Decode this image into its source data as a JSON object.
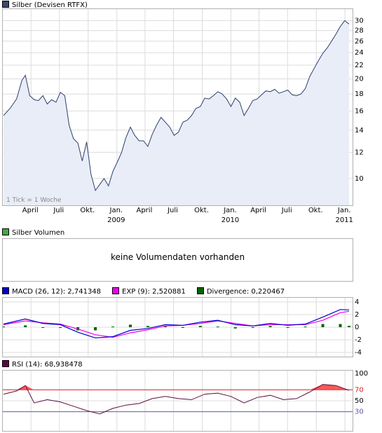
{
  "colors": {
    "price_line": "#2c3f6e",
    "price_fill": "#e9edf7",
    "grid": "#dcdcdc",
    "macd_line": "#0000cc",
    "exp_line": "#ee00ee",
    "divergence": "#006600",
    "rsi_line": "#5a0f3a",
    "rsi_band_high": "#e02020",
    "rsi_band_low": "#5a5aaa",
    "rsi_fill": "#ff5555",
    "volume_swatch": "#44aa44",
    "macd_swatch": "#0000cc",
    "exp_swatch": "#ee00ee",
    "div_swatch": "#006600",
    "rsi_swatch": "#66004a",
    "price_swatch": "#3a4a6e"
  },
  "price_panel": {
    "legend": "Silber (Devisen RTFX)",
    "footnote": "1 Tick = 1 Woche",
    "month_labels": [
      "April",
      "Juli",
      "Okt.",
      "Jan.",
      "April",
      "Juli",
      "Okt.",
      "Jan.",
      "April",
      "Juli",
      "Okt.",
      "Jan."
    ],
    "year_labels": [
      "2009",
      "2010",
      "2011"
    ]
  },
  "volume_panel": {
    "legend": "Silber Volumen",
    "message": "keine Volumendaten vorhanden"
  },
  "macd_panel": {
    "macd_legend": "MACD (26, 12): 2,741348",
    "exp_legend": "EXP (9): 2,520881",
    "div_legend": "Divergence: 0,220467"
  },
  "rsi_panel": {
    "legend": "RSI (14): 68,938478"
  },
  "chart_data": [
    {
      "type": "area",
      "title": "Silber (Devisen RTFX)",
      "y_scale": "log",
      "yticks": [
        10,
        12,
        14,
        16,
        18,
        20,
        22,
        24,
        26,
        28,
        30
      ],
      "ylim": [
        8.3,
        32.5
      ],
      "x_start": "2008-01-04",
      "x_end": "2011-01-14",
      "x": [
        "2008-01-04",
        "2008-01-25",
        "2008-02-15",
        "2008-03-03",
        "2008-03-14",
        "2008-03-28",
        "2008-04-11",
        "2008-04-25",
        "2008-05-09",
        "2008-05-23",
        "2008-06-06",
        "2008-06-20",
        "2008-07-04",
        "2008-07-18",
        "2008-08-01",
        "2008-08-15",
        "2008-08-29",
        "2008-09-12",
        "2008-09-26",
        "2008-10-10",
        "2008-10-24",
        "2008-11-07",
        "2008-11-21",
        "2008-12-05",
        "2008-12-19",
        "2009-01-02",
        "2009-01-16",
        "2009-01-30",
        "2009-02-13",
        "2009-02-27",
        "2009-03-13",
        "2009-03-27",
        "2009-04-10",
        "2009-04-24",
        "2009-05-08",
        "2009-05-22",
        "2009-06-05",
        "2009-06-19",
        "2009-07-03",
        "2009-07-17",
        "2009-07-31",
        "2009-08-14",
        "2009-08-28",
        "2009-09-11",
        "2009-09-25",
        "2009-10-09",
        "2009-10-23",
        "2009-11-06",
        "2009-11-20",
        "2009-12-04",
        "2009-12-18",
        "2010-01-01",
        "2010-01-15",
        "2010-01-29",
        "2010-02-12",
        "2010-02-26",
        "2010-03-12",
        "2010-03-26",
        "2010-04-09",
        "2010-04-23",
        "2010-05-07",
        "2010-05-21",
        "2010-06-04",
        "2010-06-18",
        "2010-07-02",
        "2010-07-16",
        "2010-07-30",
        "2010-08-13",
        "2010-08-27",
        "2010-09-10",
        "2010-09-24",
        "2010-10-08",
        "2010-10-22",
        "2010-11-05",
        "2010-11-19",
        "2010-12-03",
        "2010-12-17",
        "2010-12-31",
        "2011-01-14"
      ],
      "values": [
        15.5,
        16.3,
        17.4,
        19.8,
        20.5,
        17.8,
        17.3,
        17.2,
        17.8,
        16.8,
        17.3,
        17.0,
        18.2,
        17.8,
        14.5,
        13.2,
        12.8,
        11.3,
        12.9,
        10.3,
        9.2,
        9.6,
        10.0,
        9.5,
        10.5,
        11.2,
        12.0,
        13.3,
        14.3,
        13.5,
        13.0,
        13.0,
        12.5,
        13.6,
        14.5,
        15.3,
        14.8,
        14.3,
        13.5,
        13.8,
        14.8,
        15.0,
        15.5,
        16.3,
        16.5,
        17.5,
        17.4,
        17.8,
        18.3,
        18.0,
        17.4,
        16.5,
        17.5,
        17.0,
        15.5,
        16.3,
        17.2,
        17.4,
        17.9,
        18.4,
        18.3,
        18.6,
        18.1,
        18.3,
        18.5,
        17.9,
        17.8,
        18.0,
        18.7,
        20.3,
        21.5,
        22.7,
        23.9,
        24.8,
        26.0,
        27.3,
        28.8,
        30.0,
        29.3
      ]
    },
    {
      "type": "line",
      "title": "MACD",
      "ylim": [
        -4,
        4
      ],
      "yticks": [
        -4,
        -2,
        0,
        2,
        4
      ],
      "x_start": "2008-01-04",
      "x_end": "2011-01-14",
      "x": [
        "2008-01-04",
        "2008-03-14",
        "2008-05-09",
        "2008-07-04",
        "2008-08-29",
        "2008-10-24",
        "2008-12-19",
        "2009-02-13",
        "2009-04-10",
        "2009-06-05",
        "2009-07-31",
        "2009-09-25",
        "2009-11-20",
        "2010-01-15",
        "2010-03-12",
        "2010-05-07",
        "2010-07-02",
        "2010-08-27",
        "2010-10-22",
        "2010-12-17",
        "2011-01-14"
      ],
      "series": [
        {
          "name": "MACD (26, 12)",
          "values": [
            0.5,
            1.3,
            0.6,
            0.4,
            -0.8,
            -1.7,
            -1.5,
            -0.5,
            -0.2,
            0.4,
            0.3,
            0.8,
            1.1,
            0.4,
            0.2,
            0.6,
            0.3,
            0.5,
            1.6,
            2.8,
            2.74
          ]
        },
        {
          "name": "EXP (9)",
          "values": [
            0.4,
            1.0,
            0.7,
            0.5,
            -0.3,
            -1.2,
            -1.6,
            -0.9,
            -0.4,
            0.2,
            0.3,
            0.6,
            1.0,
            0.6,
            0.2,
            0.4,
            0.4,
            0.4,
            1.1,
            2.3,
            2.52
          ]
        },
        {
          "name": "Divergence",
          "values": [
            0.1,
            0.3,
            -0.1,
            -0.1,
            -0.5,
            -0.5,
            0.1,
            0.4,
            0.2,
            0.2,
            0.0,
            0.2,
            0.1,
            -0.2,
            0.0,
            0.2,
            -0.1,
            0.1,
            0.5,
            0.5,
            0.22
          ]
        }
      ]
    },
    {
      "type": "line",
      "title": "RSI (14)",
      "ylim": [
        0,
        100
      ],
      "yticks": [
        30,
        50,
        70,
        100
      ],
      "bands": [
        30,
        70
      ],
      "x_start": "2008-01-04",
      "x_end": "2011-01-14",
      "x": [
        "2008-01-04",
        "2008-02-15",
        "2008-03-14",
        "2008-04-11",
        "2008-05-23",
        "2008-07-04",
        "2008-08-15",
        "2008-09-26",
        "2008-11-07",
        "2008-12-19",
        "2009-01-30",
        "2009-03-13",
        "2009-04-24",
        "2009-06-05",
        "2009-07-17",
        "2009-08-28",
        "2009-10-09",
        "2009-11-20",
        "2010-01-01",
        "2010-02-12",
        "2010-03-26",
        "2010-05-07",
        "2010-06-18",
        "2010-07-30",
        "2010-09-10",
        "2010-10-22",
        "2010-12-03",
        "2011-01-14"
      ],
      "values": [
        62,
        68,
        78,
        46,
        52,
        48,
        40,
        32,
        26,
        36,
        42,
        45,
        54,
        58,
        54,
        52,
        62,
        64,
        58,
        46,
        56,
        60,
        52,
        54,
        66,
        80,
        78,
        69
      ]
    }
  ]
}
